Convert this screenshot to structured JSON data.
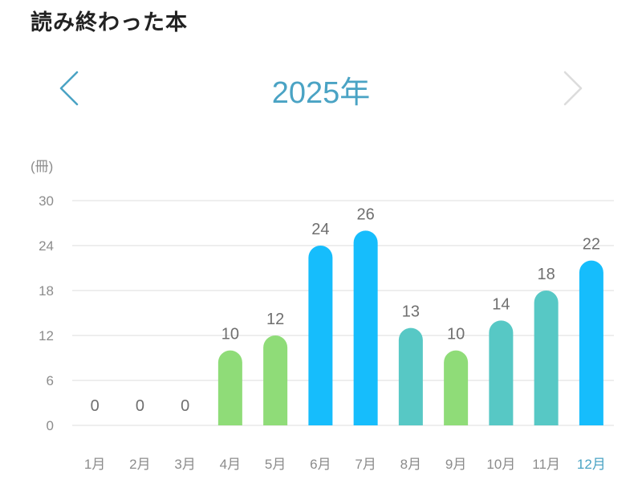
{
  "page": {
    "title": "読み終わった本"
  },
  "year_nav": {
    "year_label": "2025年",
    "prev_icon": "chevron-left-icon",
    "next_icon": "chevron-right-icon"
  },
  "colors": {
    "accent": "#4aa3c4",
    "low": "#8fdc78",
    "high": "#16bdfc",
    "mid": "#57c8c5",
    "nav_disabled": "#dcdcdc"
  },
  "chart_data": {
    "type": "bar",
    "title": "",
    "ylabel": "(冊)",
    "xlabel": "",
    "ylim": [
      0,
      30
    ],
    "yticks": [
      "0",
      "6",
      "12",
      "18",
      "24",
      "30"
    ],
    "categories": [
      "1月",
      "2月",
      "3月",
      "4月",
      "5月",
      "6月",
      "7月",
      "8月",
      "9月",
      "10月",
      "11月",
      "12月"
    ],
    "values": [
      0,
      0,
      0,
      10,
      12,
      24,
      26,
      13,
      10,
      14,
      18,
      22
    ],
    "bar_colors": [
      "#8fdc78",
      "#8fdc78",
      "#8fdc78",
      "#8fdc78",
      "#8fdc78",
      "#16bdfc",
      "#16bdfc",
      "#57c8c5",
      "#8fdc78",
      "#57c8c5",
      "#57c8c5",
      "#16bdfc"
    ],
    "selected_category": "12月",
    "grid": true
  }
}
